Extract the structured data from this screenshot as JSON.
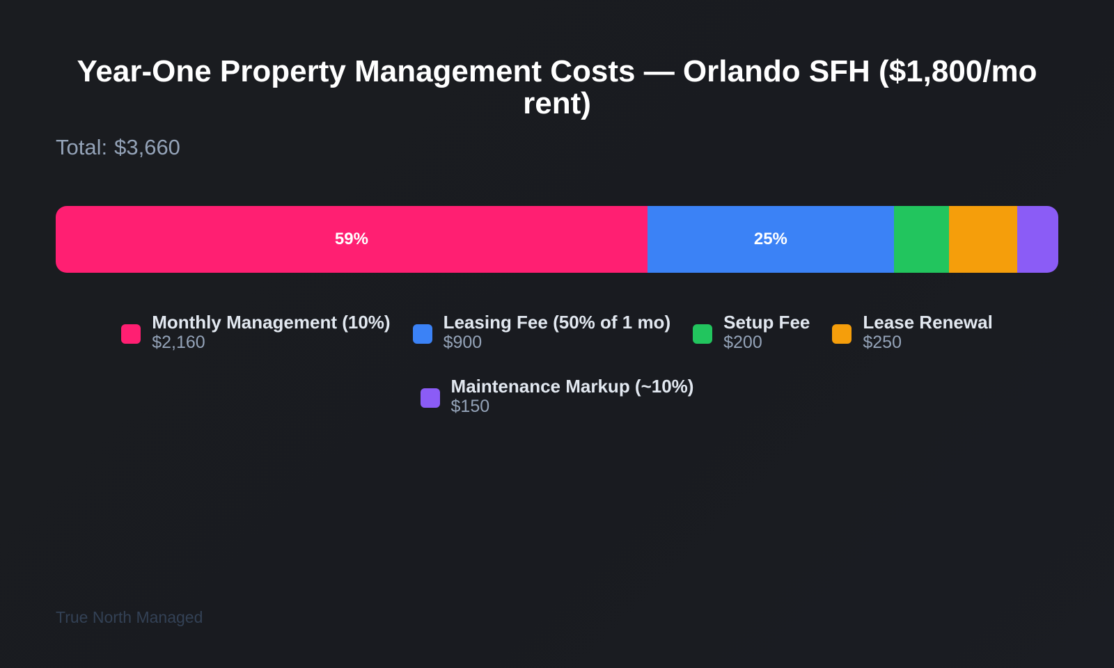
{
  "chart_data": {
    "type": "bar",
    "subtype": "stacked-horizontal-100",
    "title": "Year-One Property Management Costs — Orlando SFH ($1,800/mo rent)",
    "total_label": "Total:",
    "total_value": "$3,660",
    "legend_position": "bottom",
    "series": [
      {
        "name": "Monthly Management (10%)",
        "value": 2160,
        "value_label": "$2,160",
        "color": "#ff1f72",
        "pct_label": "59%"
      },
      {
        "name": "Leasing Fee (50% of 1 mo)",
        "value": 900,
        "value_label": "$900",
        "color": "#3b82f6",
        "pct_label": "25%"
      },
      {
        "name": "Setup Fee",
        "value": 200,
        "value_label": "$200",
        "color": "#22c55e",
        "pct_label": ""
      },
      {
        "name": "Lease Renewal",
        "value": 250,
        "value_label": "$250",
        "color": "#f59e0b",
        "pct_label": ""
      },
      {
        "name": "Maintenance Markup (~10%)",
        "value": 150,
        "value_label": "$150",
        "color": "#8b5cf6",
        "pct_label": ""
      }
    ]
  },
  "footer": "True North Managed"
}
